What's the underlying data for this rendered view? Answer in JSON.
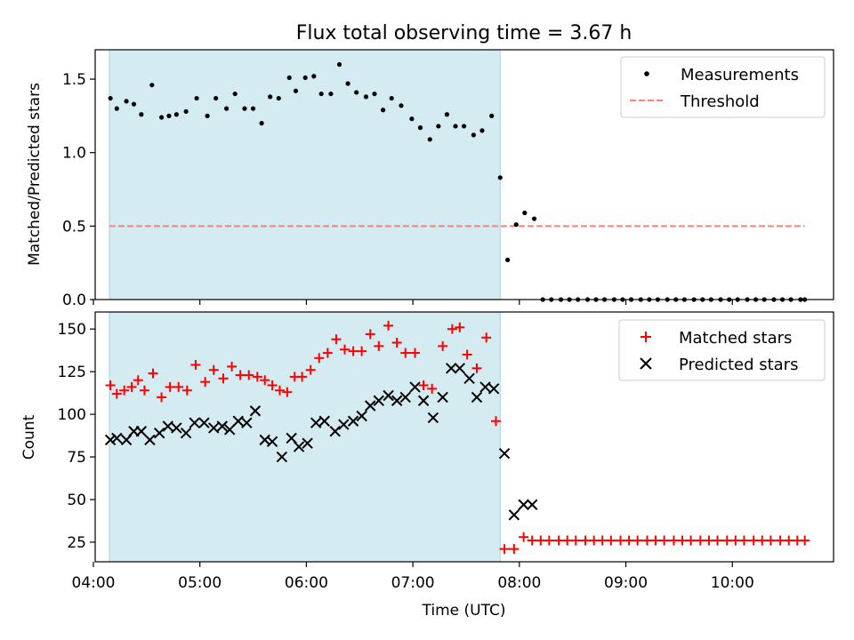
{
  "chart_data": {
    "title": "Flux total observing time = 3.67 h",
    "xlabel": "Time (UTC)",
    "xlim": [
      4.017,
      10.95
    ],
    "xticks": [
      4,
      5,
      6,
      7,
      8,
      9,
      10
    ],
    "x_tick_labels": [
      "04:00",
      "05:00",
      "06:00",
      "07:00",
      "08:00",
      "09:00",
      "10:00"
    ],
    "observing_window": {
      "start": 4.15,
      "end": 7.82,
      "color": "#d4ebf2"
    },
    "colors": {
      "measurement": "#000000",
      "threshold": "#ff7f7f",
      "matched": "#ff0000",
      "predicted": "#000000",
      "span_edge": "#a9d3e0"
    },
    "panels": [
      {
        "type": "scatter",
        "ylabel": "Matched/Predicted stars",
        "ylim": [
          0,
          1.7
        ],
        "yticks": [
          0.0,
          0.5,
          1.0,
          1.5
        ],
        "y_tick_labels": [
          "0.0",
          "0.5",
          "1.0",
          "1.5"
        ],
        "legend": {
          "position": "top-right",
          "entries": [
            "Measurements",
            "Threshold"
          ]
        },
        "threshold": {
          "value": 0.5,
          "x_start": 4.15,
          "x_end": 10.68
        },
        "series": [
          {
            "name": "Measurements",
            "points": [
              [
                4.16,
                1.37
              ],
              [
                4.22,
                1.3
              ],
              [
                4.31,
                1.35
              ],
              [
                4.38,
                1.33
              ],
              [
                4.45,
                1.26
              ],
              [
                4.55,
                1.46
              ],
              [
                4.64,
                1.24
              ],
              [
                4.71,
                1.25
              ],
              [
                4.78,
                1.26
              ],
              [
                4.87,
                1.28
              ],
              [
                4.97,
                1.37
              ],
              [
                5.07,
                1.25
              ],
              [
                5.15,
                1.37
              ],
              [
                5.25,
                1.3
              ],
              [
                5.33,
                1.4
              ],
              [
                5.42,
                1.3
              ],
              [
                5.5,
                1.3
              ],
              [
                5.58,
                1.2
              ],
              [
                5.66,
                1.38
              ],
              [
                5.74,
                1.37
              ],
              [
                5.84,
                1.51
              ],
              [
                5.9,
                1.42
              ],
              [
                5.99,
                1.51
              ],
              [
                6.07,
                1.52
              ],
              [
                6.14,
                1.4
              ],
              [
                6.23,
                1.4
              ],
              [
                6.31,
                1.6
              ],
              [
                6.39,
                1.47
              ],
              [
                6.47,
                1.41
              ],
              [
                6.56,
                1.38
              ],
              [
                6.64,
                1.4
              ],
              [
                6.72,
                1.29
              ],
              [
                6.8,
                1.37
              ],
              [
                6.89,
                1.32
              ],
              [
                6.99,
                1.23
              ],
              [
                7.07,
                1.17
              ],
              [
                7.16,
                1.09
              ],
              [
                7.24,
                1.18
              ],
              [
                7.32,
                1.26
              ],
              [
                7.4,
                1.18
              ],
              [
                7.48,
                1.18
              ],
              [
                7.57,
                1.12
              ],
              [
                7.65,
                1.15
              ],
              [
                7.74,
                1.25
              ],
              [
                7.82,
                0.83
              ],
              [
                7.89,
                0.27
              ],
              [
                7.97,
                0.51
              ],
              [
                8.05,
                0.59
              ],
              [
                8.14,
                0.55
              ],
              [
                8.22,
                0.0
              ],
              [
                8.3,
                0.0
              ],
              [
                8.39,
                0.0
              ],
              [
                8.47,
                0.0
              ],
              [
                8.55,
                0.0
              ],
              [
                8.64,
                0.0
              ],
              [
                8.72,
                0.0
              ],
              [
                8.8,
                0.0
              ],
              [
                8.89,
                0.0
              ],
              [
                8.97,
                0.0
              ],
              [
                9.05,
                0.0
              ],
              [
                9.14,
                0.0
              ],
              [
                9.22,
                0.0
              ],
              [
                9.3,
                0.0
              ],
              [
                9.39,
                0.0
              ],
              [
                9.47,
                0.0
              ],
              [
                9.55,
                0.0
              ],
              [
                9.64,
                0.0
              ],
              [
                9.72,
                0.0
              ],
              [
                9.8,
                0.0
              ],
              [
                9.89,
                0.0
              ],
              [
                9.97,
                0.0
              ],
              [
                10.05,
                0.0
              ],
              [
                10.14,
                0.0
              ],
              [
                10.22,
                0.0
              ],
              [
                10.3,
                0.0
              ],
              [
                10.39,
                0.0
              ],
              [
                10.47,
                0.0
              ],
              [
                10.55,
                0.0
              ],
              [
                10.64,
                0.0
              ],
              [
                10.68,
                0.0
              ]
            ]
          }
        ]
      },
      {
        "type": "scatter",
        "ylabel": "Count",
        "ylim": [
          13.5,
          160
        ],
        "yticks": [
          25,
          50,
          75,
          100,
          125,
          150
        ],
        "y_tick_labels": [
          "25",
          "50",
          "75",
          "100",
          "125",
          "150"
        ],
        "legend": {
          "position": "top-right",
          "entries": [
            "Matched stars",
            "Predicted stars"
          ]
        },
        "series": [
          {
            "name": "Matched stars",
            "marker": "plus",
            "points": [
              [
                4.16,
                117
              ],
              [
                4.22,
                112
              ],
              [
                4.29,
                114
              ],
              [
                4.36,
                116
              ],
              [
                4.42,
                120
              ],
              [
                4.48,
                114
              ],
              [
                4.56,
                124
              ],
              [
                4.64,
                110
              ],
              [
                4.72,
                116
              ],
              [
                4.8,
                116
              ],
              [
                4.88,
                114
              ],
              [
                4.96,
                129
              ],
              [
                5.05,
                119
              ],
              [
                5.13,
                126
              ],
              [
                5.22,
                121
              ],
              [
                5.3,
                128
              ],
              [
                5.38,
                123
              ],
              [
                5.46,
                123
              ],
              [
                5.54,
                122
              ],
              [
                5.61,
                120
              ],
              [
                5.68,
                117
              ],
              [
                5.75,
                114
              ],
              [
                5.82,
                113
              ],
              [
                5.89,
                122
              ],
              [
                5.96,
                122
              ],
              [
                6.04,
                126
              ],
              [
                6.12,
                133
              ],
              [
                6.2,
                136
              ],
              [
                6.28,
                144
              ],
              [
                6.36,
                138
              ],
              [
                6.44,
                137
              ],
              [
                6.52,
                137
              ],
              [
                6.6,
                147
              ],
              [
                6.68,
                140
              ],
              [
                6.77,
                152
              ],
              [
                6.85,
                142
              ],
              [
                6.93,
                136
              ],
              [
                7.02,
                136
              ],
              [
                7.1,
                117
              ],
              [
                7.18,
                115
              ],
              [
                7.28,
                140
              ],
              [
                7.37,
                150
              ],
              [
                7.44,
                151
              ],
              [
                7.51,
                135
              ],
              [
                7.6,
                127
              ],
              [
                7.69,
                145
              ],
              [
                7.78,
                96
              ],
              [
                7.86,
                21
              ],
              [
                7.95,
                21
              ],
              [
                8.04,
                28
              ],
              [
                8.12,
                26
              ],
              [
                8.2,
                26
              ],
              [
                8.28,
                26
              ],
              [
                8.37,
                26
              ],
              [
                8.45,
                26
              ],
              [
                8.53,
                26
              ],
              [
                8.62,
                26
              ],
              [
                8.7,
                26
              ],
              [
                8.78,
                26
              ],
              [
                8.86,
                26
              ],
              [
                8.95,
                26
              ],
              [
                9.03,
                26
              ],
              [
                9.11,
                26
              ],
              [
                9.2,
                26
              ],
              [
                9.28,
                26
              ],
              [
                9.36,
                26
              ],
              [
                9.45,
                26
              ],
              [
                9.53,
                26
              ],
              [
                9.61,
                26
              ],
              [
                9.7,
                26
              ],
              [
                9.78,
                26
              ],
              [
                9.86,
                26
              ],
              [
                9.95,
                26
              ],
              [
                10.03,
                26
              ],
              [
                10.11,
                26
              ],
              [
                10.2,
                26
              ],
              [
                10.28,
                26
              ],
              [
                10.36,
                26
              ],
              [
                10.45,
                26
              ],
              [
                10.53,
                26
              ],
              [
                10.61,
                26
              ],
              [
                10.68,
                26
              ]
            ]
          },
          {
            "name": "Predicted stars",
            "marker": "x",
            "points": [
              [
                4.16,
                85
              ],
              [
                4.22,
                86
              ],
              [
                4.31,
                85
              ],
              [
                4.38,
                90
              ],
              [
                4.45,
                90
              ],
              [
                4.53,
                85
              ],
              [
                4.62,
                89
              ],
              [
                4.7,
                93
              ],
              [
                4.78,
                92
              ],
              [
                4.87,
                89
              ],
              [
                4.95,
                95
              ],
              [
                5.04,
                95
              ],
              [
                5.13,
                92
              ],
              [
                5.21,
                93
              ],
              [
                5.28,
                91
              ],
              [
                5.36,
                96
              ],
              [
                5.44,
                95
              ],
              [
                5.52,
                102
              ],
              [
                5.61,
                85
              ],
              [
                5.68,
                84
              ],
              [
                5.77,
                75
              ],
              [
                5.86,
                86
              ],
              [
                5.93,
                81
              ],
              [
                6.01,
                83
              ],
              [
                6.09,
                95
              ],
              [
                6.17,
                96
              ],
              [
                6.27,
                90
              ],
              [
                6.35,
                94
              ],
              [
                6.44,
                96
              ],
              [
                6.52,
                99
              ],
              [
                6.6,
                105
              ],
              [
                6.68,
                108
              ],
              [
                6.77,
                111
              ],
              [
                6.85,
                108
              ],
              [
                6.93,
                110
              ],
              [
                7.02,
                116
              ],
              [
                7.1,
                108
              ],
              [
                7.19,
                98
              ],
              [
                7.28,
                110
              ],
              [
                7.36,
                127
              ],
              [
                7.44,
                127
              ],
              [
                7.53,
                121
              ],
              [
                7.6,
                110
              ],
              [
                7.68,
                116
              ],
              [
                7.76,
                115
              ],
              [
                7.86,
                77
              ],
              [
                7.95,
                41
              ],
              [
                8.04,
                47
              ],
              [
                8.12,
                47
              ]
            ]
          }
        ]
      }
    ]
  }
}
